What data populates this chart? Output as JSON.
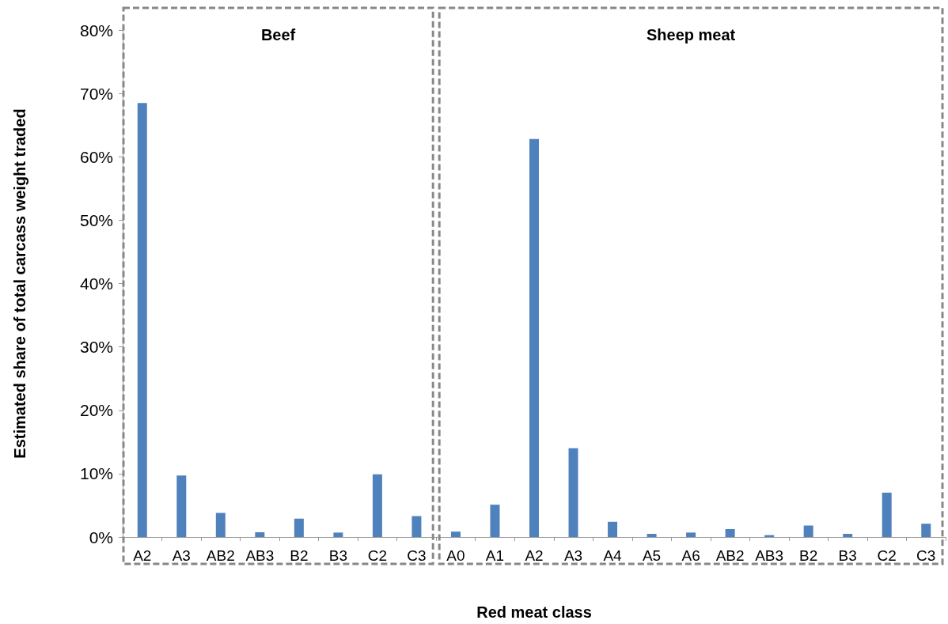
{
  "chart_data": {
    "type": "bar",
    "xlabel": "Red meat class",
    "ylabel": "Estimated share of total carcass weight traded",
    "categories": [
      "A2",
      "A3",
      "AB2",
      "AB3",
      "B2",
      "B3",
      "C2",
      "C3",
      "A0",
      "A1",
      "A2",
      "A3",
      "A4",
      "A5",
      "A6",
      "AB2",
      "AB3",
      "B2",
      "B3",
      "C2",
      "C3"
    ],
    "values": [
      68.5,
      9.7,
      3.8,
      0.75,
      2.9,
      0.7,
      9.9,
      3.3,
      0.85,
      5.1,
      62.8,
      14.0,
      2.4,
      0.5,
      0.7,
      1.25,
      0.3,
      1.8,
      0.5,
      7.0,
      2.1
    ],
    "color": "#4f81bd",
    "ylim": [
      0,
      80
    ],
    "yticks": [
      {
        "value": 0,
        "label": "0%"
      },
      {
        "value": 10,
        "label": "10%"
      },
      {
        "value": 20,
        "label": "20%"
      },
      {
        "value": 30,
        "label": "30%"
      },
      {
        "value": 40,
        "label": "40%"
      },
      {
        "value": 50,
        "label": "50%"
      },
      {
        "value": 60,
        "label": "60%"
      },
      {
        "value": 70,
        "label": "70%"
      },
      {
        "value": 80,
        "label": "80%"
      }
    ],
    "annotations": [
      "Beef",
      "Sheep meat"
    ],
    "grid": false
  }
}
